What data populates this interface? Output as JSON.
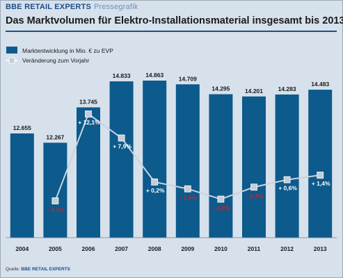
{
  "header": {
    "brand": "BBE RETAIL EXPERTS",
    "subtitle": "Pressegrafik"
  },
  "source": {
    "prefix": "Quelle:",
    "brand": "BBE RETAIL EXPERTS"
  },
  "colors": {
    "bar": "#0d5a8c",
    "line": "#c9d3de",
    "marker": "#c4cdd7",
    "negative": "#c0282d",
    "positive": "#ffffff"
  },
  "chart_data": {
    "type": "bar",
    "title": "Das Marktvolumen für Elektro-Installationsmaterial insgesamt bis 2013",
    "categories": [
      "2004",
      "2005",
      "2006",
      "2007",
      "2008",
      "2009",
      "2010",
      "2011",
      "2012",
      "2013"
    ],
    "series": [
      {
        "name": "Marktentwicklung in Mio. € zu EVP",
        "type": "bar",
        "values": [
          12655,
          12267,
          13745,
          14833,
          14863,
          14709,
          14295,
          14201,
          14283,
          14483
        ],
        "labels": [
          "12.655",
          "12.267",
          "13.745",
          "14.833",
          "14.863",
          "14.709",
          "14.295",
          "14.201",
          "14.283",
          "14.483"
        ]
      },
      {
        "name": "Veränderung zum Vorjahr",
        "type": "line",
        "values": [
          null,
          -3.1,
          12.1,
          7.9,
          0.2,
          -1.0,
          -2.8,
          -0.7,
          0.6,
          1.4
        ],
        "labels": [
          null,
          "- 3,1%",
          "+ 12,1%",
          "+ 7,9%",
          "+ 0,2%",
          "- 1,0%",
          "- 2,8%",
          "- 0,7%",
          "+ 0,6%",
          "+ 1,4%"
        ]
      }
    ],
    "legend_position": "top-left",
    "grid": false
  }
}
